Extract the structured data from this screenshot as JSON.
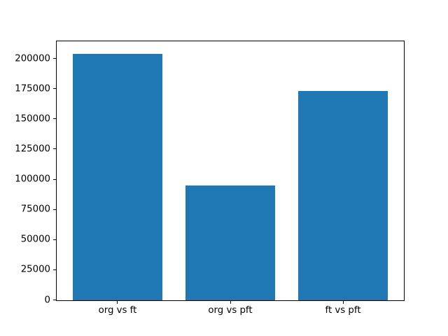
{
  "chart_data": {
    "type": "bar",
    "title": "",
    "xlabel": "",
    "ylabel": "",
    "categories": [
      "org vs ft",
      "org vs pft",
      "ft vs pft"
    ],
    "values": [
      204000,
      95000,
      173000
    ],
    "yticks": [
      0,
      25000,
      50000,
      75000,
      100000,
      125000,
      150000,
      175000,
      200000
    ],
    "ylim": [
      0,
      214200
    ],
    "xlim": [
      -0.54,
      2.54
    ],
    "bar_width": 0.8,
    "grid": false,
    "legend": "none",
    "colors": {
      "bar": "#1f77b4",
      "axis": "#000000",
      "background": "#ffffff",
      "tick_label": "#000000"
    }
  }
}
